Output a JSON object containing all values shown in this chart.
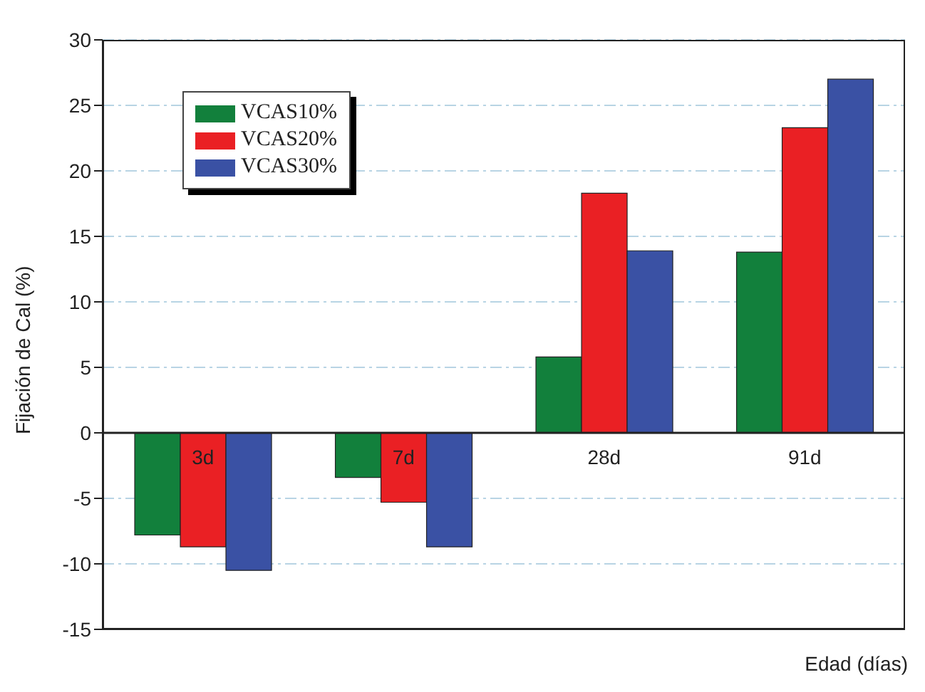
{
  "chart_data": {
    "type": "bar",
    "xlabel": "Edad (días)",
    "ylabel": "Fijación de Cal (%)",
    "categories": [
      "3d",
      "7d",
      "28d",
      "91d"
    ],
    "series": [
      {
        "name": "VCAS10%",
        "color": "#12803c",
        "values": [
          -7.8,
          -3.4,
          5.8,
          13.8
        ]
      },
      {
        "name": "VCAS20%",
        "color": "#ea2024",
        "values": [
          -8.7,
          -5.3,
          18.3,
          23.3
        ]
      },
      {
        "name": "VCAS30%",
        "color": "#3a51a4",
        "values": [
          -10.5,
          -8.7,
          13.9,
          27.0
        ]
      }
    ],
    "ylim": [
      -15,
      30
    ],
    "yticks": [
      -15,
      -10,
      -5,
      0,
      5,
      10,
      15,
      20,
      25,
      30
    ],
    "grid": "y",
    "legend": "top left"
  }
}
